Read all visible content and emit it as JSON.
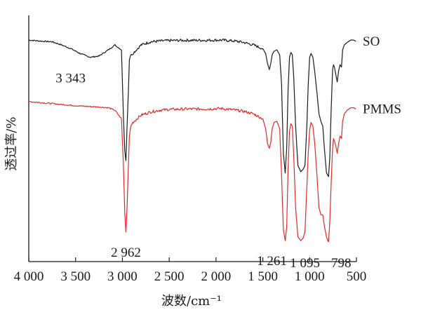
{
  "chart_data": {
    "type": "line",
    "xlabel": "波数/cm⁻¹",
    "ylabel": "透过率/%",
    "x_ticks": [
      4000,
      3500,
      3000,
      2500,
      2000,
      1500,
      1000,
      500
    ],
    "x_tick_labels": [
      "4 000",
      "3 500",
      "3 000",
      "2 500",
      "2 000",
      "1 500",
      "1 000",
      "500"
    ],
    "xlim": [
      4000,
      500
    ],
    "x_reversed": true,
    "ylim": [
      0,
      100
    ],
    "grid": false,
    "legend": "series labels at right end of each curve",
    "series": [
      {
        "name": "SO",
        "color": "#1a1a1a",
        "points": [
          [
            4000,
            90
          ],
          [
            3850,
            89.5
          ],
          [
            3750,
            89.3
          ],
          [
            3650,
            88
          ],
          [
            3550,
            86.5
          ],
          [
            3450,
            84.5
          ],
          [
            3343,
            83
          ],
          [
            3250,
            83.5
          ],
          [
            3150,
            86
          ],
          [
            3080,
            88
          ],
          [
            3010,
            86
          ],
          [
            2990,
            60
          ],
          [
            2975,
            45
          ],
          [
            2962,
            41
          ],
          [
            2950,
            55
          ],
          [
            2935,
            70
          ],
          [
            2925,
            82
          ],
          [
            2910,
            84
          ],
          [
            2890,
            84.5
          ],
          [
            2800,
            88
          ],
          [
            2700,
            89.3
          ],
          [
            2600,
            89.6
          ],
          [
            2500,
            89.8
          ],
          [
            2300,
            89.9
          ],
          [
            2100,
            89.9
          ],
          [
            1950,
            90
          ],
          [
            1800,
            89.6
          ],
          [
            1700,
            89
          ],
          [
            1600,
            88
          ],
          [
            1500,
            86.5
          ],
          [
            1470,
            84.5
          ],
          [
            1450,
            80.5
          ],
          [
            1430,
            78
          ],
          [
            1415,
            80.5
          ],
          [
            1400,
            84
          ],
          [
            1380,
            85.5
          ],
          [
            1350,
            86
          ],
          [
            1320,
            84
          ],
          [
            1300,
            72
          ],
          [
            1280,
            44
          ],
          [
            1261,
            36
          ],
          [
            1245,
            46
          ],
          [
            1230,
            70
          ],
          [
            1215,
            83
          ],
          [
            1200,
            85
          ],
          [
            1185,
            84
          ],
          [
            1170,
            75
          ],
          [
            1150,
            55
          ],
          [
            1125,
            39
          ],
          [
            1100,
            37
          ],
          [
            1095,
            36.5
          ],
          [
            1070,
            37.5
          ],
          [
            1050,
            39
          ],
          [
            1030,
            55
          ],
          [
            1015,
            72
          ],
          [
            1000,
            83
          ],
          [
            985,
            84.5
          ],
          [
            965,
            83
          ],
          [
            945,
            77
          ],
          [
            920,
            68
          ],
          [
            900,
            60
          ],
          [
            880,
            57
          ],
          [
            860,
            55
          ],
          [
            840,
            45
          ],
          [
            820,
            36
          ],
          [
            805,
            35
          ],
          [
            798,
            34.5
          ],
          [
            785,
            42
          ],
          [
            770,
            62
          ],
          [
            755,
            78
          ],
          [
            745,
            80
          ],
          [
            735,
            79
          ],
          [
            720,
            76
          ],
          [
            705,
            73
          ],
          [
            690,
            77.5
          ],
          [
            675,
            80
          ],
          [
            660,
            79
          ],
          [
            648,
            86
          ],
          [
            630,
            88
          ],
          [
            600,
            89
          ],
          [
            560,
            90
          ],
          [
            530,
            90
          ],
          [
            505,
            89.5
          ]
        ]
      },
      {
        "name": "PMMS",
        "color": "#e02a2a",
        "points": [
          [
            4000,
            65
          ],
          [
            3850,
            64.5
          ],
          [
            3750,
            64.2
          ],
          [
            3650,
            63.8
          ],
          [
            3550,
            63.5
          ],
          [
            3450,
            63.2
          ],
          [
            3343,
            63
          ],
          [
            3250,
            62.8
          ],
          [
            3150,
            62.5
          ],
          [
            3080,
            61.5
          ],
          [
            3010,
            58
          ],
          [
            2990,
            40
          ],
          [
            2975,
            20
          ],
          [
            2962,
            12
          ],
          [
            2950,
            22
          ],
          [
            2935,
            40
          ],
          [
            2925,
            51
          ],
          [
            2910,
            55
          ],
          [
            2890,
            56.5
          ],
          [
            2800,
            59.5
          ],
          [
            2700,
            60.8
          ],
          [
            2600,
            61.5
          ],
          [
            2500,
            61.8
          ],
          [
            2300,
            62
          ],
          [
            2100,
            62
          ],
          [
            1950,
            62.2
          ],
          [
            1800,
            61.6
          ],
          [
            1700,
            61
          ],
          [
            1600,
            60
          ],
          [
            1500,
            58
          ],
          [
            1470,
            54
          ],
          [
            1450,
            48
          ],
          [
            1430,
            46
          ],
          [
            1415,
            48.5
          ],
          [
            1400,
            54
          ],
          [
            1380,
            56.5
          ],
          [
            1350,
            57
          ],
          [
            1320,
            54
          ],
          [
            1300,
            35
          ],
          [
            1280,
            13
          ],
          [
            1261,
            8.5
          ],
          [
            1245,
            14
          ],
          [
            1230,
            38
          ],
          [
            1215,
            53
          ],
          [
            1200,
            56
          ],
          [
            1185,
            55
          ],
          [
            1170,
            43
          ],
          [
            1150,
            22
          ],
          [
            1125,
            10
          ],
          [
            1100,
            8.8
          ],
          [
            1095,
            8.5
          ],
          [
            1070,
            9.5
          ],
          [
            1050,
            12
          ],
          [
            1030,
            30
          ],
          [
            1015,
            44
          ],
          [
            1000,
            53.5
          ],
          [
            985,
            56.5
          ],
          [
            965,
            55
          ],
          [
            945,
            48
          ],
          [
            920,
            34
          ],
          [
            900,
            22
          ],
          [
            880,
            19
          ],
          [
            860,
            19
          ],
          [
            840,
            14
          ],
          [
            820,
            10
          ],
          [
            805,
            8.5
          ],
          [
            798,
            8
          ],
          [
            785,
            16
          ],
          [
            770,
            32
          ],
          [
            755,
            46
          ],
          [
            745,
            50
          ],
          [
            735,
            49
          ],
          [
            720,
            47
          ],
          [
            705,
            44
          ],
          [
            690,
            48
          ],
          [
            675,
            51
          ],
          [
            660,
            50
          ],
          [
            648,
            57
          ],
          [
            630,
            60
          ],
          [
            600,
            61.5
          ],
          [
            560,
            62.5
          ],
          [
            530,
            62.5
          ],
          [
            505,
            62
          ]
        ]
      }
    ],
    "annotations": [
      {
        "text": "3 343",
        "x": 3343,
        "series": "SO"
      },
      {
        "text": "2 962",
        "x": 2962,
        "series": "PMMS"
      },
      {
        "text": "1 261",
        "x": 1261,
        "series": "PMMS"
      },
      {
        "text": "1 095",
        "x": 1095,
        "series": "PMMS"
      },
      {
        "text": "798",
        "x": 798,
        "series": "PMMS"
      }
    ]
  }
}
